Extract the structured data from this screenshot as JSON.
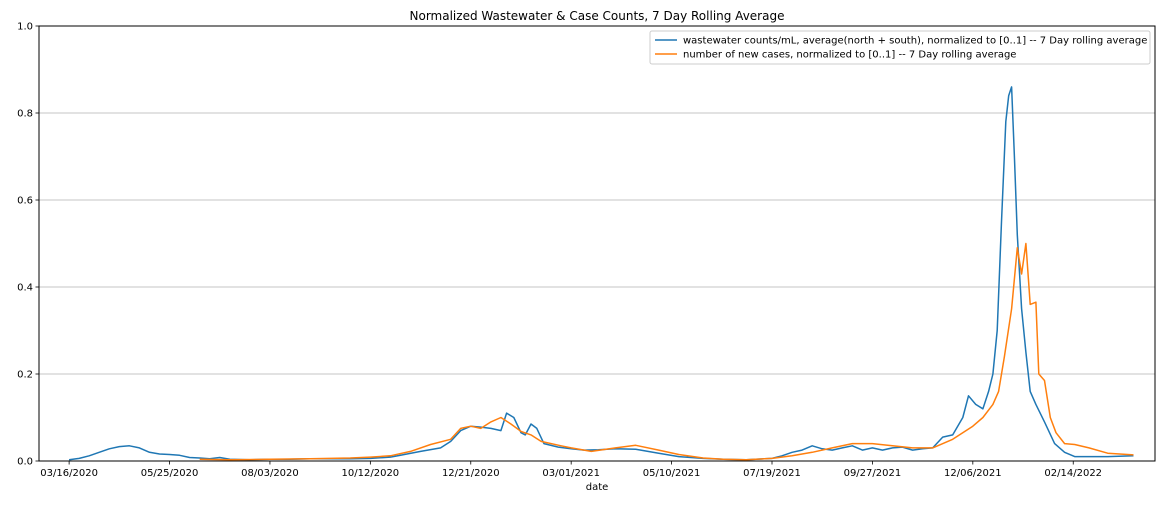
{
  "chart_data": {
    "type": "line",
    "title": "Normalized Wastewater & Case Counts, 7 Day Rolling Average",
    "xlabel": "date",
    "ylabel": "",
    "x_tick_labels": [
      "03/16/2020",
      "05/25/2020",
      "08/03/2020",
      "10/12/2020",
      "12/21/2020",
      "03/01/2021",
      "05/10/2021",
      "07/19/2021",
      "09/27/2021",
      "12/06/2021",
      "02/14/2022"
    ],
    "y_tick_labels": [
      "0.0",
      "0.2",
      "0.4",
      "0.6",
      "0.8",
      "1.0"
    ],
    "ylim": [
      0,
      1
    ],
    "xlim": [
      "2020-02-24",
      "2022-04-12"
    ],
    "grid": "horizontal",
    "legend_position": "top-right",
    "series": [
      {
        "name": "wastewater counts/mL, average(north + south), normalized to [0..1] -- 7 Day rolling average",
        "color": "#1f77b4",
        "points": [
          [
            "2020-03-16",
            0.003
          ],
          [
            "2020-03-23",
            0.006
          ],
          [
            "2020-03-30",
            0.012
          ],
          [
            "2020-04-06",
            0.02
          ],
          [
            "2020-04-13",
            0.028
          ],
          [
            "2020-04-20",
            0.033
          ],
          [
            "2020-04-27",
            0.035
          ],
          [
            "2020-05-04",
            0.03
          ],
          [
            "2020-05-11",
            0.02
          ],
          [
            "2020-05-18",
            0.016
          ],
          [
            "2020-05-25",
            0.015
          ],
          [
            "2020-06-01",
            0.013
          ],
          [
            "2020-06-08",
            0.008
          ],
          [
            "2020-06-15",
            0.007
          ],
          [
            "2020-06-22",
            0.005
          ],
          [
            "2020-06-29",
            0.008
          ],
          [
            "2020-07-06",
            0.004
          ],
          [
            "2020-07-20",
            0.003
          ],
          [
            "2020-08-03",
            0.004
          ],
          [
            "2020-08-17",
            0.004
          ],
          [
            "2020-08-31",
            0.005
          ],
          [
            "2020-09-14",
            0.005
          ],
          [
            "2020-09-28",
            0.005
          ],
          [
            "2020-10-12",
            0.006
          ],
          [
            "2020-10-26",
            0.009
          ],
          [
            "2020-11-02",
            0.013
          ],
          [
            "2020-11-16",
            0.022
          ],
          [
            "2020-11-30",
            0.03
          ],
          [
            "2020-12-07",
            0.045
          ],
          [
            "2020-12-14",
            0.07
          ],
          [
            "2020-12-21",
            0.08
          ],
          [
            "2020-12-28",
            0.078
          ],
          [
            "2021-01-04",
            0.075
          ],
          [
            "2021-01-11",
            0.07
          ],
          [
            "2021-01-15",
            0.11
          ],
          [
            "2021-01-20",
            0.1
          ],
          [
            "2021-01-25",
            0.065
          ],
          [
            "2021-01-28",
            0.06
          ],
          [
            "2021-02-01",
            0.085
          ],
          [
            "2021-02-05",
            0.075
          ],
          [
            "2021-02-10",
            0.04
          ],
          [
            "2021-02-20",
            0.032
          ],
          [
            "2021-03-01",
            0.028
          ],
          [
            "2021-03-10",
            0.025
          ],
          [
            "2021-03-20",
            0.026
          ],
          [
            "2021-04-01",
            0.028
          ],
          [
            "2021-04-15",
            0.027
          ],
          [
            "2021-05-01",
            0.018
          ],
          [
            "2021-05-15",
            0.01
          ],
          [
            "2021-06-01",
            0.006
          ],
          [
            "2021-06-15",
            0.004
          ],
          [
            "2021-07-01",
            0.003
          ],
          [
            "2021-07-19",
            0.006
          ],
          [
            "2021-07-26",
            0.012
          ],
          [
            "2021-08-02",
            0.02
          ],
          [
            "2021-08-09",
            0.025
          ],
          [
            "2021-08-16",
            0.035
          ],
          [
            "2021-08-23",
            0.028
          ],
          [
            "2021-08-30",
            0.025
          ],
          [
            "2021-09-06",
            0.03
          ],
          [
            "2021-09-13",
            0.035
          ],
          [
            "2021-09-20",
            0.025
          ],
          [
            "2021-09-27",
            0.03
          ],
          [
            "2021-10-04",
            0.025
          ],
          [
            "2021-10-11",
            0.03
          ],
          [
            "2021-10-18",
            0.032
          ],
          [
            "2021-10-25",
            0.025
          ],
          [
            "2021-11-01",
            0.028
          ],
          [
            "2021-11-08",
            0.03
          ],
          [
            "2021-11-15",
            0.055
          ],
          [
            "2021-11-22",
            0.06
          ],
          [
            "2021-11-29",
            0.1
          ],
          [
            "2021-12-03",
            0.15
          ],
          [
            "2021-12-08",
            0.13
          ],
          [
            "2021-12-13",
            0.12
          ],
          [
            "2021-12-17",
            0.16
          ],
          [
            "2021-12-20",
            0.2
          ],
          [
            "2021-12-23",
            0.3
          ],
          [
            "2021-12-26",
            0.55
          ],
          [
            "2021-12-29",
            0.78
          ],
          [
            "2021-12-31",
            0.84
          ],
          [
            "2022-01-02",
            0.86
          ],
          [
            "2022-01-04",
            0.7
          ],
          [
            "2022-01-06",
            0.52
          ],
          [
            "2022-01-09",
            0.35
          ],
          [
            "2022-01-12",
            0.25
          ],
          [
            "2022-01-15",
            0.16
          ],
          [
            "2022-01-19",
            0.13
          ],
          [
            "2022-01-25",
            0.09
          ],
          [
            "2022-02-01",
            0.04
          ],
          [
            "2022-02-08",
            0.02
          ],
          [
            "2022-02-15",
            0.01
          ],
          [
            "2022-02-25",
            0.01
          ],
          [
            "2022-03-10",
            0.01
          ],
          [
            "2022-03-28",
            0.012
          ]
        ]
      },
      {
        "name": "number of new cases, normalized to [0..1] -- 7 Day rolling average",
        "color": "#ff7f0e",
        "points": [
          [
            "2020-06-15",
            0.004
          ],
          [
            "2020-07-06",
            0.003
          ],
          [
            "2020-08-03",
            0.004
          ],
          [
            "2020-08-31",
            0.005
          ],
          [
            "2020-09-28",
            0.007
          ],
          [
            "2020-10-12",
            0.009
          ],
          [
            "2020-10-26",
            0.012
          ],
          [
            "2020-11-09",
            0.022
          ],
          [
            "2020-11-23",
            0.038
          ],
          [
            "2020-12-07",
            0.05
          ],
          [
            "2020-12-14",
            0.075
          ],
          [
            "2020-12-21",
            0.08
          ],
          [
            "2020-12-28",
            0.075
          ],
          [
            "2021-01-04",
            0.09
          ],
          [
            "2021-01-11",
            0.1
          ],
          [
            "2021-01-18",
            0.085
          ],
          [
            "2021-01-25",
            0.068
          ],
          [
            "2021-02-01",
            0.06
          ],
          [
            "2021-02-08",
            0.045
          ],
          [
            "2021-02-22",
            0.035
          ],
          [
            "2021-03-01",
            0.03
          ],
          [
            "2021-03-15",
            0.022
          ],
          [
            "2021-04-01",
            0.03
          ],
          [
            "2021-04-15",
            0.036
          ],
          [
            "2021-05-01",
            0.025
          ],
          [
            "2021-05-15",
            0.015
          ],
          [
            "2021-06-01",
            0.007
          ],
          [
            "2021-06-15",
            0.004
          ],
          [
            "2021-07-01",
            0.003
          ],
          [
            "2021-07-19",
            0.006
          ],
          [
            "2021-08-02",
            0.012
          ],
          [
            "2021-08-16",
            0.02
          ],
          [
            "2021-08-30",
            0.03
          ],
          [
            "2021-09-13",
            0.04
          ],
          [
            "2021-09-27",
            0.04
          ],
          [
            "2021-10-11",
            0.035
          ],
          [
            "2021-10-25",
            0.03
          ],
          [
            "2021-11-08",
            0.03
          ],
          [
            "2021-11-22",
            0.05
          ],
          [
            "2021-12-06",
            0.08
          ],
          [
            "2021-12-13",
            0.1
          ],
          [
            "2021-12-20",
            0.13
          ],
          [
            "2021-12-24",
            0.16
          ],
          [
            "2021-12-28",
            0.24
          ],
          [
            "2022-01-02",
            0.35
          ],
          [
            "2022-01-06",
            0.49
          ],
          [
            "2022-01-09",
            0.43
          ],
          [
            "2022-01-12",
            0.5
          ],
          [
            "2022-01-15",
            0.36
          ],
          [
            "2022-01-19",
            0.365
          ],
          [
            "2022-01-21",
            0.2
          ],
          [
            "2022-01-25",
            0.185
          ],
          [
            "2022-01-29",
            0.1
          ],
          [
            "2022-02-02",
            0.065
          ],
          [
            "2022-02-08",
            0.04
          ],
          [
            "2022-02-15",
            0.038
          ],
          [
            "2022-02-25",
            0.03
          ],
          [
            "2022-03-10",
            0.018
          ],
          [
            "2022-03-28",
            0.014
          ]
        ]
      }
    ]
  }
}
